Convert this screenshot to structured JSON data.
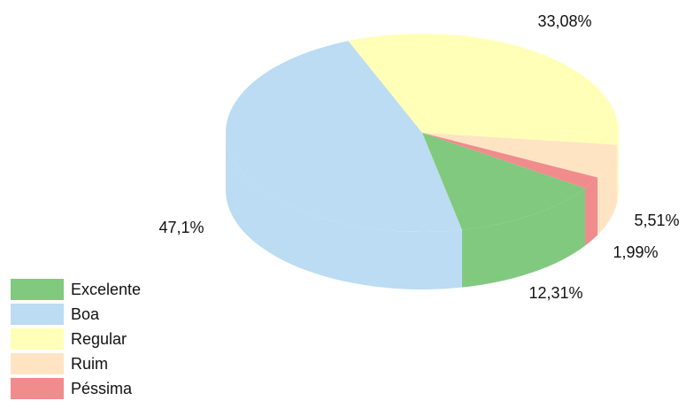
{
  "chart_data": {
    "type": "pie",
    "categories": [
      "Excelente",
      "Boa",
      "Regular",
      "Ruim",
      "Péssima"
    ],
    "values": [
      12.31,
      47.1,
      33.08,
      5.51,
      1.99
    ],
    "value_labels": [
      "12,31%",
      "47,1%",
      "33,08%",
      "5,51%",
      "1,99%"
    ],
    "colors": [
      "#80c97e",
      "#bbdcf2",
      "#ffffb7",
      "#ffe4c4",
      "#f08c8c"
    ],
    "legend": "bottom-left"
  }
}
